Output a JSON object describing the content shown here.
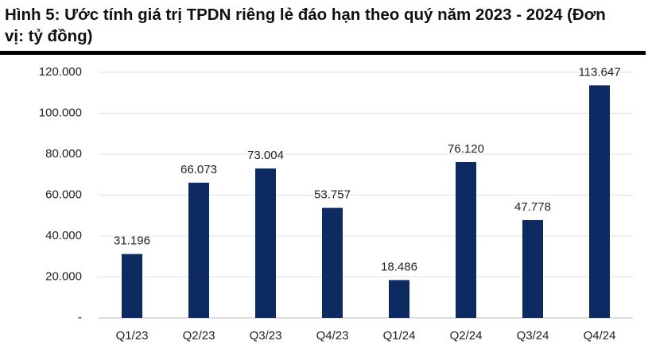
{
  "chart_data": {
    "type": "bar",
    "title": "Hình 5: Ước tính giá trị TPDN riêng lẻ đáo hạn theo quý năm 2023 - 2024 (Đơn vị: tỷ đồng)",
    "categories": [
      "Q1/23",
      "Q2/23",
      "Q3/23",
      "Q4/23",
      "Q1/24",
      "Q2/24",
      "Q3/24",
      "Q4/24"
    ],
    "values": [
      31196,
      66073,
      73004,
      53757,
      18486,
      76120,
      47778,
      113647
    ],
    "value_labels": [
      "31.196",
      "66.073",
      "73.004",
      "53.757",
      "18.486",
      "76.120",
      "47.778",
      "113.647"
    ],
    "color": "#0d2a63",
    "ylim": [
      0,
      120000
    ],
    "yticks": [
      {
        "value": 0,
        "label": "-"
      },
      {
        "value": 20000,
        "label": "20.000"
      },
      {
        "value": 40000,
        "label": "40.000"
      },
      {
        "value": 60000,
        "label": "60.000"
      },
      {
        "value": 80000,
        "label": "80.000"
      },
      {
        "value": 100000,
        "label": "100.000"
      },
      {
        "value": 120000,
        "label": "120.000"
      }
    ],
    "grid": true
  }
}
